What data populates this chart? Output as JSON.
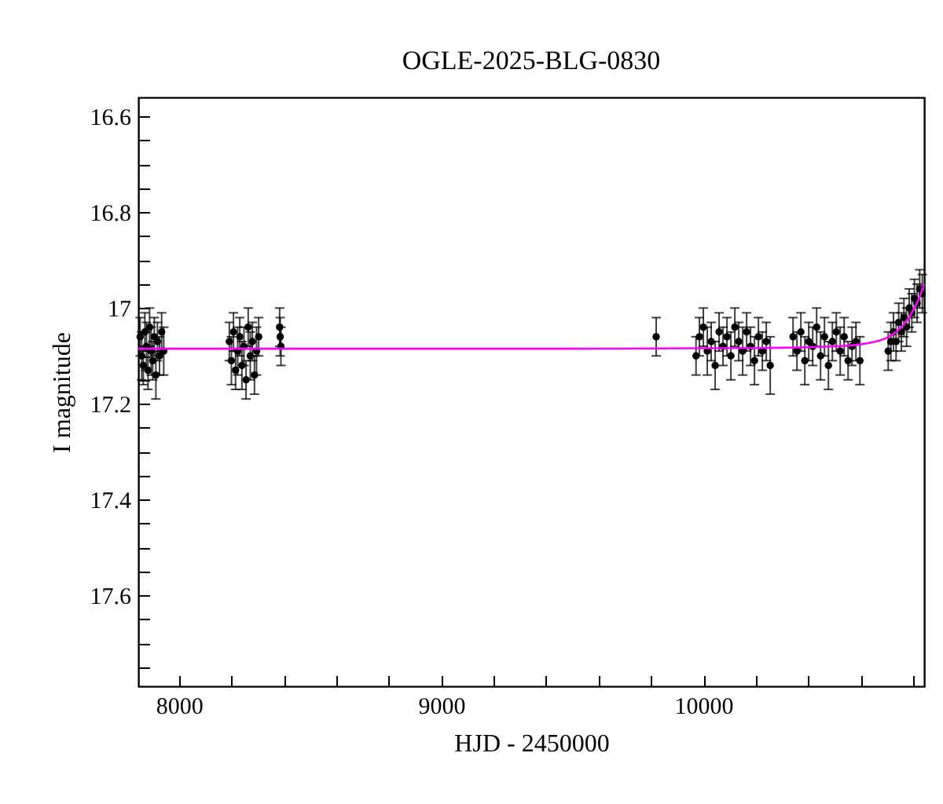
{
  "chart_data": {
    "type": "scatter",
    "title": "OGLE-2025-BLG-0830",
    "xlabel": "HJD - 2450000",
    "ylabel": "I magnitude",
    "xlim": [
      7845,
      10842
    ],
    "ylim": [
      17.79,
      16.56
    ],
    "xticks": [
      8000,
      {
        "value": 8200,
        "label": null
      },
      {
        "value": 8400,
        "label": null
      },
      {
        "value": 8600,
        "label": null
      },
      {
        "value": 8800,
        "label": null
      },
      9000,
      {
        "value": 9200,
        "label": null
      },
      {
        "value": 9400,
        "label": null
      },
      {
        "value": 9600,
        "label": null
      },
      {
        "value": 9800,
        "label": null
      },
      10000,
      {
        "value": 10200,
        "label": null
      },
      {
        "value": 10400,
        "label": null
      },
      {
        "value": 10600,
        "label": null
      },
      {
        "value": 10800,
        "label": null
      }
    ],
    "yticks": [
      16.6,
      {
        "value": 16.65,
        "label": null
      },
      {
        "value": 16.7,
        "label": null
      },
      {
        "value": 16.75,
        "label": null
      },
      16.8,
      {
        "value": 16.85,
        "label": null
      },
      {
        "value": 16.9,
        "label": null
      },
      {
        "value": 16.95,
        "label": null
      },
      17,
      {
        "value": 17.05,
        "label": null
      },
      {
        "value": 17.1,
        "label": null
      },
      {
        "value": 17.15,
        "label": null
      },
      17.2,
      {
        "value": 17.25,
        "label": null
      },
      {
        "value": 17.3,
        "label": null
      },
      {
        "value": 17.35,
        "label": null
      },
      17.4,
      {
        "value": 17.45,
        "label": null
      },
      {
        "value": 17.5,
        "label": null
      },
      {
        "value": 17.55,
        "label": null
      },
      17.6,
      {
        "value": 17.65,
        "label": null
      },
      {
        "value": 17.7,
        "label": null
      },
      {
        "value": 17.75,
        "label": null
      }
    ],
    "marker": "circle",
    "series": [
      {
        "color": "#000000",
        "x": [
          7852,
          7858,
          7864,
          7870,
          7876,
          7882,
          7888,
          7894,
          7900,
          7906,
          7912,
          7918,
          7926,
          7934,
          7942,
          8192,
          8200,
          8208,
          8216,
          8224,
          8232,
          8240,
          8248,
          8256,
          8264,
          8272,
          8280,
          8288,
          8296,
          8304,
          8384,
          8386,
          8389,
          9820,
          9972,
          9985,
          10000,
          10015,
          10030,
          10045,
          10060,
          10075,
          10090,
          10105,
          10120,
          10135,
          10150,
          10165,
          10180,
          10195,
          10210,
          10225,
          10240,
          10255,
          10342,
          10357,
          10372,
          10387,
          10402,
          10417,
          10432,
          10447,
          10462,
          10477,
          10492,
          10507,
          10522,
          10537,
          10552,
          10567,
          10582,
          10597,
          10705,
          10715,
          10725,
          10735,
          10745,
          10755,
          10765,
          10775,
          10785,
          10795,
          10805,
          10815,
          10825,
          10835
        ],
        "values": [
          17.06,
          17.1,
          17.12,
          17.05,
          17.08,
          17.13,
          17.04,
          17.09,
          17.11,
          17.06,
          17.14,
          17.07,
          17.1,
          17.05,
          17.09,
          17.07,
          17.11,
          17.05,
          17.13,
          17.09,
          17.06,
          17.12,
          17.08,
          17.15,
          17.04,
          17.1,
          17.07,
          17.14,
          17.09,
          17.06,
          17.04,
          17.06,
          17.08,
          17.06,
          17.1,
          17.06,
          17.04,
          17.09,
          17.07,
          17.12,
          17.05,
          17.08,
          17.06,
          17.1,
          17.04,
          17.07,
          17.09,
          17.05,
          17.08,
          17.11,
          17.06,
          17.09,
          17.07,
          17.12,
          17.06,
          17.09,
          17.05,
          17.11,
          17.07,
          17.08,
          17.04,
          17.1,
          17.06,
          17.12,
          17.07,
          17.05,
          17.09,
          17.06,
          17.11,
          17.08,
          17.07,
          17.11,
          17.09,
          17.07,
          17.05,
          17.07,
          17.03,
          17.05,
          17.02,
          17.04,
          17.0,
          17.01,
          16.98,
          16.99,
          16.96,
          16.97
        ],
        "errors": [
          0.04,
          0.05,
          0.04,
          0.04,
          0.05,
          0.04,
          0.04,
          0.05,
          0.04,
          0.04,
          0.05,
          0.04,
          0.04,
          0.04,
          0.05,
          0.04,
          0.05,
          0.04,
          0.04,
          0.05,
          0.04,
          0.05,
          0.04,
          0.04,
          0.04,
          0.05,
          0.04,
          0.04,
          0.05,
          0.04,
          0.04,
          0.04,
          0.04,
          0.04,
          0.04,
          0.04,
          0.04,
          0.05,
          0.04,
          0.05,
          0.04,
          0.04,
          0.04,
          0.05,
          0.04,
          0.04,
          0.05,
          0.04,
          0.04,
          0.05,
          0.04,
          0.04,
          0.04,
          0.06,
          0.04,
          0.04,
          0.04,
          0.05,
          0.04,
          0.04,
          0.04,
          0.05,
          0.04,
          0.05,
          0.04,
          0.04,
          0.05,
          0.04,
          0.04,
          0.04,
          0.04,
          0.05,
          0.04,
          0.04,
          0.04,
          0.04,
          0.04,
          0.04,
          0.04,
          0.04,
          0.04,
          0.04,
          0.04,
          0.04,
          0.04,
          0.04
        ]
      },
      {
        "type": "line",
        "color": "#ff00ff",
        "marker": "none",
        "x": [
          7845,
          8500,
          9000,
          9500,
          10000,
          10300,
          10500,
          10600,
          10650,
          10700,
          10740,
          10770,
          10800,
          10820,
          10842
        ],
        "values": [
          17.085,
          17.085,
          17.085,
          17.085,
          17.084,
          17.083,
          17.08,
          17.076,
          17.071,
          17.062,
          17.048,
          17.031,
          17.005,
          16.983,
          16.95
        ]
      }
    ]
  }
}
